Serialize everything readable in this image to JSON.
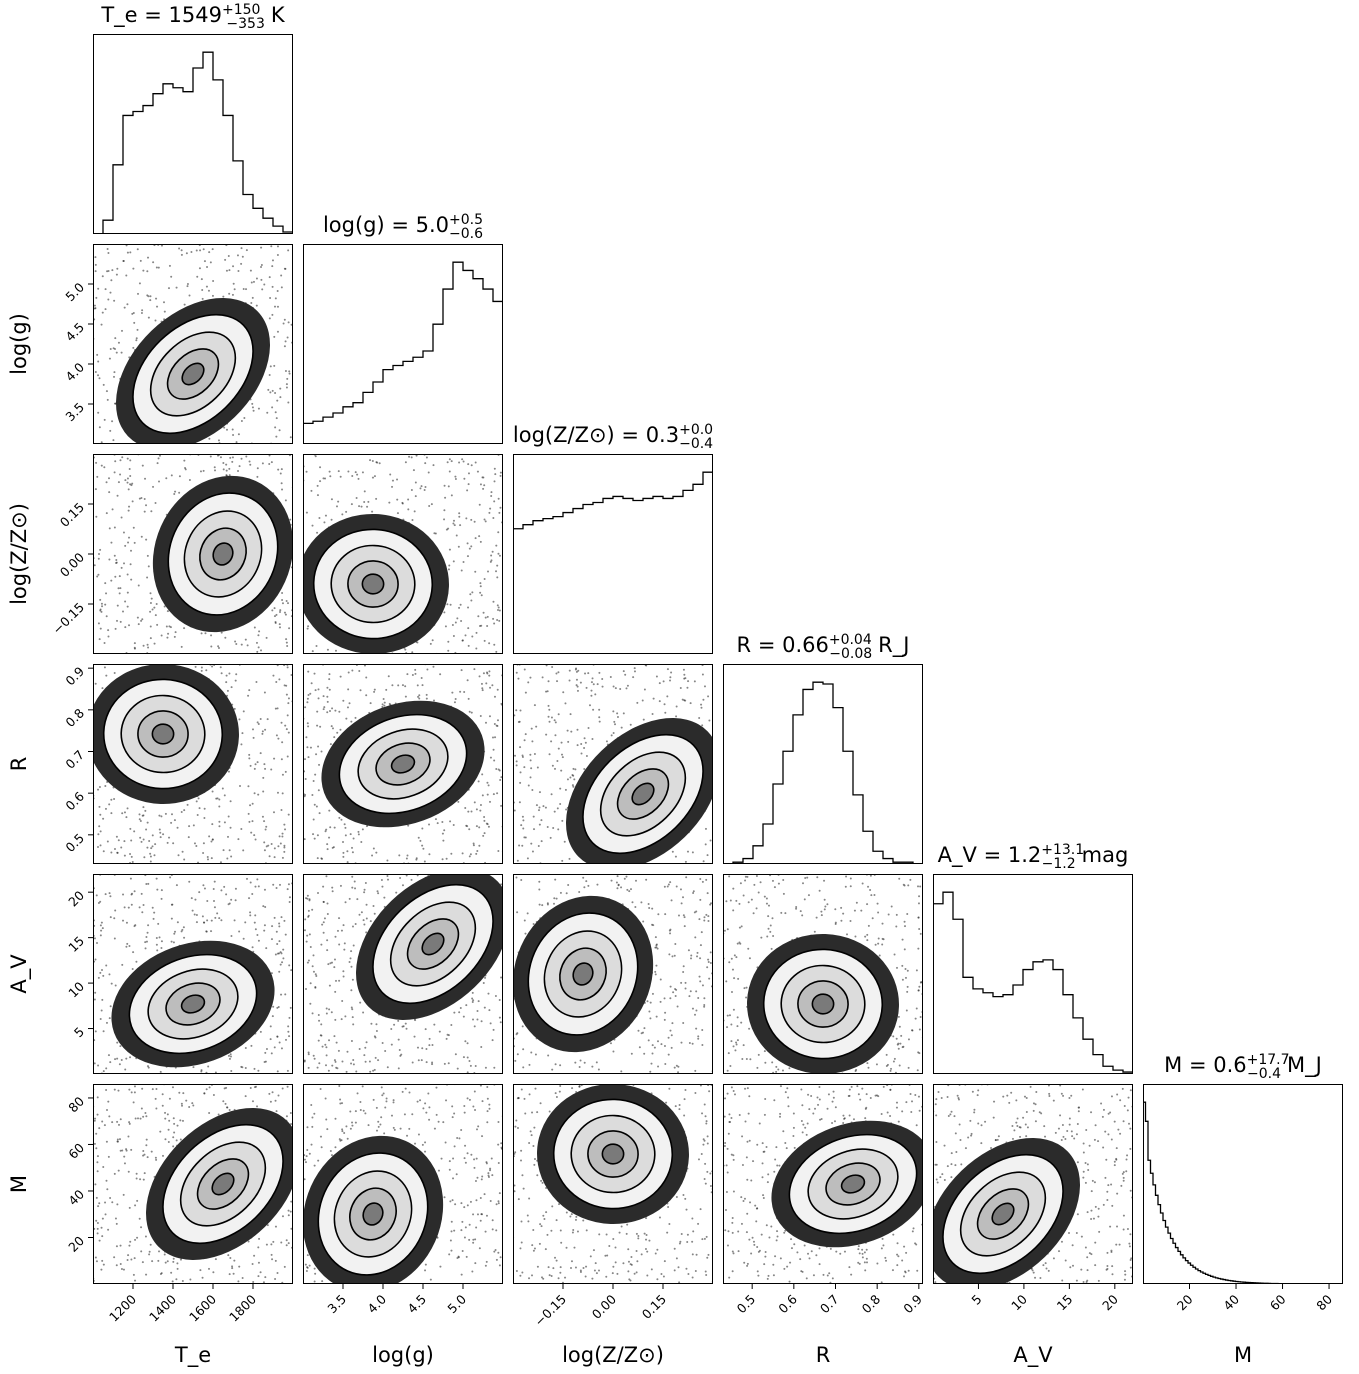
{
  "chart_data": {
    "type": "corner",
    "parameters": [
      {
        "key": "Te",
        "label": "T_e",
        "range": [
          1000,
          2000
        ],
        "ticks": [
          1200,
          1400,
          1600,
          1800
        ],
        "tick_labels": [
          "1200",
          "1400",
          "1600",
          "1800"
        ],
        "title": {
          "name": "T_e",
          "median": "1549",
          "plus": "+150",
          "minus": "−353",
          "unit": "K"
        },
        "hist": [
          0.0,
          0.07,
          0.35,
          0.6,
          0.62,
          0.65,
          0.71,
          0.76,
          0.74,
          0.72,
          0.84,
          0.92,
          0.78,
          0.6,
          0.37,
          0.2,
          0.13,
          0.08,
          0.04,
          0.01
        ]
      },
      {
        "key": "logg",
        "label": "log(g)",
        "range": [
          3.0,
          5.5
        ],
        "ticks": [
          3.5,
          4.0,
          4.5,
          5.0
        ],
        "tick_labels": [
          "3.5",
          "4.0",
          "4.5",
          "5.0"
        ],
        "title": {
          "name": "log(g)",
          "median": "5.0",
          "plus": "+0.5",
          "minus": "−0.6",
          "unit": ""
        },
        "hist": [
          0.1,
          0.11,
          0.13,
          0.15,
          0.18,
          0.2,
          0.25,
          0.3,
          0.36,
          0.38,
          0.4,
          0.42,
          0.45,
          0.58,
          0.75,
          0.88,
          0.84,
          0.8,
          0.75,
          0.69
        ]
      },
      {
        "key": "logZ",
        "label": "log(Z/Z⊙)",
        "range": [
          -0.3,
          0.3
        ],
        "ticks": [
          -0.15,
          0.0,
          0.15
        ],
        "tick_labels": [
          "−0.15",
          "0.00",
          "0.15"
        ],
        "title": {
          "name": "log(Z/Z⊙)",
          "median": "0.3",
          "plus": "+0.0",
          "minus": "−0.4",
          "unit": ""
        },
        "hist": [
          0.62,
          0.64,
          0.66,
          0.67,
          0.68,
          0.7,
          0.72,
          0.74,
          0.75,
          0.77,
          0.78,
          0.77,
          0.76,
          0.77,
          0.78,
          0.77,
          0.78,
          0.81,
          0.84,
          0.9
        ]
      },
      {
        "key": "R",
        "label": "R",
        "range": [
          0.43,
          0.91
        ],
        "ticks": [
          0.5,
          0.6,
          0.7,
          0.8,
          0.9
        ],
        "tick_labels": [
          "0.5",
          "0.6",
          "0.7",
          "0.8",
          "0.9"
        ],
        "title": {
          "name": "R",
          "median": "0.66",
          "plus": "+0.04",
          "minus": "−0.08",
          "unit": "R_J"
        },
        "hist": [
          0.0,
          0.01,
          0.03,
          0.1,
          0.22,
          0.44,
          0.62,
          0.82,
          0.96,
          1.0,
          0.99,
          0.86,
          0.62,
          0.38,
          0.18,
          0.07,
          0.03,
          0.01,
          0.01,
          0.0
        ]
      },
      {
        "key": "AV",
        "label": "A_V",
        "range": [
          0,
          22
        ],
        "ticks": [
          5,
          10,
          15,
          20
        ],
        "tick_labels": [
          "5",
          "10",
          "15",
          "20"
        ],
        "title": {
          "name": "A_V",
          "median": "1.2",
          "plus": "+13.1",
          "minus": "−1.2",
          "unit": "mag"
        },
        "hist": [
          0.88,
          0.94,
          0.8,
          0.5,
          0.44,
          0.42,
          0.4,
          0.41,
          0.46,
          0.54,
          0.58,
          0.59,
          0.54,
          0.41,
          0.29,
          0.18,
          0.1,
          0.04,
          0.02,
          0.01
        ]
      },
      {
        "key": "M",
        "label": "M",
        "range": [
          0,
          86
        ],
        "ticks": [
          20,
          40,
          60,
          80
        ],
        "tick_labels": [
          "20",
          "40",
          "60",
          "80"
        ],
        "title": {
          "name": "M",
          "median": "0.6",
          "plus": "+17.7",
          "minus": "−0.4",
          "unit": "M_J"
        },
        "hist_exp_decay": true
      }
    ],
    "legend": "none",
    "grid": false
  },
  "labels": {
    "x": [
      "T_e",
      "log(g)",
      "log(Z/Z⊙)",
      "R",
      "A_V",
      "M"
    ],
    "y": [
      "log(g)",
      "log(Z/Z⊙)",
      "R",
      "A_V",
      "M"
    ]
  }
}
